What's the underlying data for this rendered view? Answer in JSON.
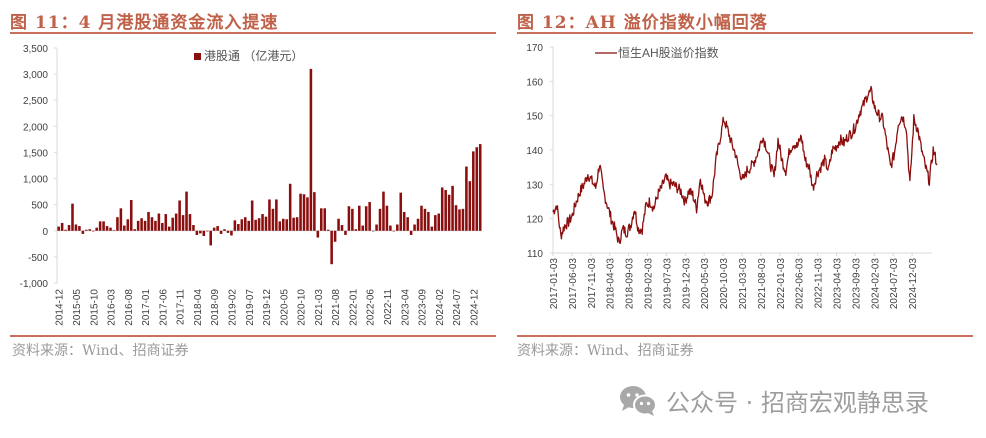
{
  "left": {
    "title": "图 11：4 月港股通资金流入提速",
    "source": "资料来源：Wind、招商证券"
  },
  "right": {
    "title": "图 12：AH 溢价指数小幅回落",
    "source": "资料来源：Wind、招商证券"
  },
  "watermark": {
    "icon": "wechat-icon",
    "text": "公众号 · 招商宏观静思录"
  },
  "colors": {
    "accent": "#c0614a",
    "bar": "#8b0e0e",
    "line": "#8b0e0e",
    "axis": "#d9d9d9",
    "tick_text": "#404040"
  },
  "chart_data": [
    {
      "type": "bar",
      "title": "图 11：4 月港股通资金流入提速",
      "legend": [
        "港股通（亿港元）"
      ],
      "legend_position": "top-center",
      "xlabel": "",
      "ylabel": "",
      "ylim": [
        -1000,
        3500
      ],
      "yticks": [
        -1000,
        -500,
        0,
        500,
        1000,
        1500,
        2000,
        2500,
        3000,
        3500
      ],
      "ytick_labels": [
        "-1,000",
        "-500",
        "0",
        "500",
        "1,000",
        "1,500",
        "2,000",
        "2,500",
        "3,000",
        "3,500"
      ],
      "xtick_labels": [
        "2014-12",
        "2015-05",
        "2015-10",
        "2016-03",
        "2016-08",
        "2017-01",
        "2017-06",
        "2017-11",
        "2018-04",
        "2018-09",
        "2019-02",
        "2019-07",
        "2019-12",
        "2020-05",
        "2020-10",
        "2021-03",
        "2021-08",
        "2022-01",
        "2022-06",
        "2022-11",
        "2023-04",
        "2023-09",
        "2024-02",
        "2024-07",
        "2024-12"
      ],
      "grid": false,
      "series": [
        {
          "name": "港股通（亿港元）",
          "start": "2014-12",
          "frequency": "monthly",
          "values": [
            80,
            150,
            20,
            110,
            520,
            120,
            90,
            -60,
            20,
            30,
            0,
            60,
            180,
            180,
            90,
            60,
            10,
            260,
            430,
            100,
            220,
            590,
            30,
            190,
            240,
            190,
            360,
            260,
            190,
            330,
            150,
            320,
            80,
            250,
            330,
            580,
            300,
            750,
            320,
            110,
            -80,
            -50,
            -100,
            0,
            -280,
            60,
            90,
            -60,
            30,
            -40,
            -90,
            200,
            130,
            220,
            260,
            190,
            580,
            210,
            240,
            320,
            270,
            600,
            420,
            600,
            180,
            230,
            220,
            900,
            250,
            260,
            710,
            700,
            640,
            3100,
            740,
            -130,
            430,
            430,
            20,
            -640,
            -210,
            230,
            110,
            -80,
            470,
            420,
            30,
            480,
            100,
            470,
            550,
            0,
            120,
            420,
            750,
            480,
            100,
            0,
            120,
            730,
            360,
            260,
            -80,
            120,
            230,
            480,
            420,
            360,
            80,
            300,
            330,
            830,
            780,
            690,
            860,
            490,
            410,
            420,
            1230,
            950,
            1520,
            1600,
            1660
          ]
        }
      ]
    },
    {
      "type": "line",
      "title": "图 12：AH 溢价指数小幅回落",
      "legend": [
        "恒生AH股溢价指数"
      ],
      "legend_position": "top-left",
      "xlabel": "",
      "ylabel": "",
      "ylim": [
        110,
        170
      ],
      "yticks": [
        110,
        120,
        130,
        140,
        150,
        160,
        170
      ],
      "xtick_labels": [
        "2017-01-03",
        "2017-06-03",
        "2017-11-03",
        "2018-04-03",
        "2018-09-03",
        "2019-02-03",
        "2019-07-03",
        "2019-12-03",
        "2020-05-03",
        "2020-10-03",
        "2021-03-03",
        "2021-08-03",
        "2022-01-03",
        "2022-06-03",
        "2022-11-03",
        "2023-04-03",
        "2023-09-03",
        "2024-02-03",
        "2024-07-03",
        "2024-12-03"
      ],
      "grid": false,
      "series": [
        {
          "name": "恒生AH股溢价指数",
          "frequency": "approx. monthly samples",
          "x": [
            "2017-01",
            "2017-02",
            "2017-03",
            "2017-04",
            "2017-05",
            "2017-06",
            "2017-07",
            "2017-08",
            "2017-09",
            "2017-10",
            "2017-11",
            "2017-12",
            "2018-01",
            "2018-02",
            "2018-03",
            "2018-04",
            "2018-05",
            "2018-06",
            "2018-07",
            "2018-08",
            "2018-09",
            "2018-10",
            "2018-11",
            "2018-12",
            "2019-01",
            "2019-02",
            "2019-03",
            "2019-04",
            "2019-05",
            "2019-06",
            "2019-07",
            "2019-08",
            "2019-09",
            "2019-10",
            "2019-11",
            "2019-12",
            "2020-01",
            "2020-02",
            "2020-03",
            "2020-04",
            "2020-05",
            "2020-06",
            "2020-07",
            "2020-08",
            "2020-09",
            "2020-10",
            "2020-11",
            "2020-12",
            "2021-01",
            "2021-02",
            "2021-03",
            "2021-04",
            "2021-05",
            "2021-06",
            "2021-07",
            "2021-08",
            "2021-09",
            "2021-10",
            "2021-11",
            "2021-12",
            "2022-01",
            "2022-02",
            "2022-03",
            "2022-04",
            "2022-05",
            "2022-06",
            "2022-07",
            "2022-08",
            "2022-09",
            "2022-10",
            "2022-11",
            "2022-12",
            "2023-01",
            "2023-02",
            "2023-03",
            "2023-04",
            "2023-05",
            "2023-06",
            "2023-07",
            "2023-08",
            "2023-09",
            "2023-10",
            "2023-11",
            "2023-12",
            "2024-01",
            "2024-02",
            "2024-03",
            "2024-04",
            "2024-05",
            "2024-06",
            "2024-07",
            "2024-08",
            "2024-09",
            "2024-10",
            "2024-11",
            "2024-12",
            "2025-01",
            "2025-02",
            "2025-03",
            "2025-04"
          ],
          "values": [
            122,
            124,
            115,
            118,
            119,
            121,
            125,
            128,
            130,
            133,
            131,
            129,
            136,
            128,
            124,
            120,
            117,
            113,
            117,
            116,
            118,
            123,
            117,
            117,
            124,
            125,
            123,
            127,
            129,
            132,
            130,
            130,
            129,
            128,
            125,
            128,
            127,
            123,
            132,
            126,
            125,
            127,
            137,
            143,
            149,
            146,
            142,
            139,
            134,
            131,
            134,
            135,
            137,
            140,
            144,
            141,
            136,
            132,
            143,
            137,
            134,
            140,
            142,
            141,
            144,
            137,
            135,
            129,
            133,
            135,
            137,
            134,
            140,
            141,
            143,
            142,
            144,
            145,
            147,
            151,
            153,
            156,
            157,
            152,
            150,
            149,
            142,
            135,
            139,
            148,
            150,
            147,
            130,
            149,
            146,
            140,
            135,
            131,
            140,
            136
          ]
        }
      ]
    }
  ]
}
